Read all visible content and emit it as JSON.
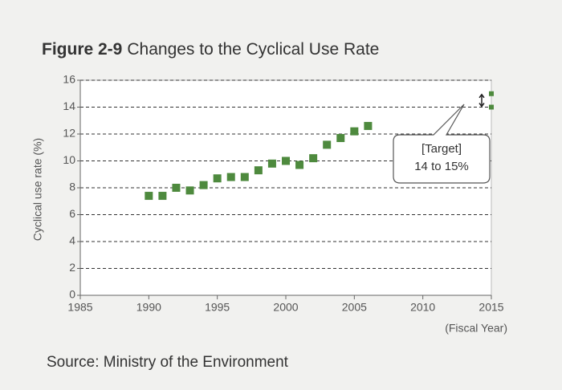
{
  "chart_data": {
    "type": "scatter",
    "figure_label": "Figure 2-9",
    "title": "Changes to the Cyclical Use Rate",
    "y_label": "Cyclical use rate (%)",
    "x_label": "(Fiscal Year)",
    "source": "Source: Ministry of the Environment",
    "x": [
      1990,
      1991,
      1992,
      1993,
      1994,
      1995,
      1996,
      1997,
      1998,
      1999,
      2000,
      2001,
      2002,
      2003,
      2004,
      2005,
      2006
    ],
    "values": [
      7.4,
      7.4,
      8.0,
      7.8,
      8.2,
      8.7,
      8.8,
      8.8,
      9.3,
      9.8,
      10.0,
      9.7,
      10.2,
      11.2,
      11.7,
      12.2,
      12.6
    ],
    "color": "#4e8a3e",
    "target": {
      "x": 2015,
      "values": [
        14,
        15
      ]
    },
    "annotation": [
      "[Target]",
      "14 to 15%"
    ],
    "xlim": [
      1985,
      2015
    ],
    "xticks": [
      1985,
      1990,
      1995,
      2000,
      2005,
      2010,
      2015
    ],
    "ylim": [
      0,
      16
    ],
    "yticks": [
      0,
      2,
      4,
      6,
      8,
      10,
      12,
      14,
      16
    ],
    "grid": true
  }
}
